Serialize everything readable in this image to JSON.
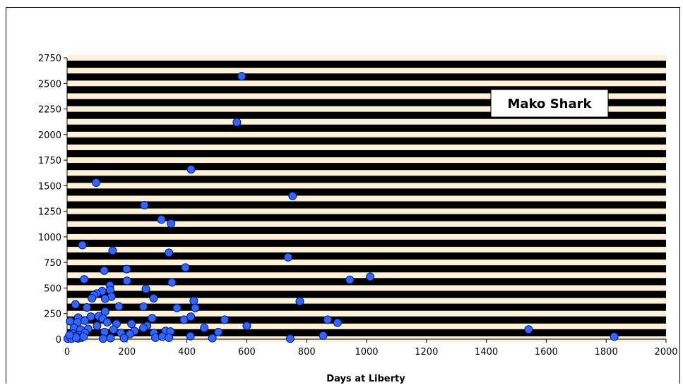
{
  "chart_data": {
    "type": "scatter",
    "title": "",
    "xlabel": "Days at Liberty",
    "ylabel": "",
    "xlim": [
      0,
      2000
    ],
    "ylim": [
      0,
      2750
    ],
    "x_ticks": [
      0,
      200,
      400,
      600,
      800,
      1000,
      1200,
      1400,
      1600,
      1800,
      2000
    ],
    "y_ticks": [
      0,
      250,
      500,
      750,
      1000,
      1250,
      1500,
      1750,
      2000,
      2250,
      2500,
      2750
    ],
    "grid": "banded",
    "legend": {
      "text": "Mako Shark",
      "placement": "top-right"
    },
    "colors": {
      "band_dark": "#000000",
      "band_light": "#fdf2d9",
      "marker_fill": "#3366ff",
      "marker_stroke": "#001a80"
    },
    "series": [
      {
        "name": "Mako Shark",
        "points": [
          [
            583,
            2570
          ],
          [
            567,
            2120
          ],
          [
            414,
            1660
          ],
          [
            97,
            1530
          ],
          [
            753,
            1400
          ],
          [
            258,
            1310
          ],
          [
            315,
            1170
          ],
          [
            347,
            1130
          ],
          [
            51,
            920
          ],
          [
            152,
            865
          ],
          [
            340,
            845
          ],
          [
            738,
            800
          ],
          [
            395,
            700
          ],
          [
            199,
            685
          ],
          [
            124,
            670
          ],
          [
            57,
            585
          ],
          [
            200,
            570
          ],
          [
            1012,
            610
          ],
          [
            944,
            580
          ],
          [
            350,
            555
          ],
          [
            143,
            525
          ],
          [
            263,
            490
          ],
          [
            144,
            480
          ],
          [
            117,
            470
          ],
          [
            98,
            445
          ],
          [
            89,
            430
          ],
          [
            148,
            415
          ],
          [
            83,
            400
          ],
          [
            127,
            395
          ],
          [
            289,
            400
          ],
          [
            777,
            370
          ],
          [
            423,
            375
          ],
          [
            28,
            340
          ],
          [
            66,
            310
          ],
          [
            173,
            320
          ],
          [
            255,
            318
          ],
          [
            367,
            305
          ],
          [
            428,
            305
          ],
          [
            127,
            270
          ],
          [
            37,
            210
          ],
          [
            106,
            225
          ],
          [
            79,
            220
          ],
          [
            284,
            205
          ],
          [
            390,
            190
          ],
          [
            413,
            220
          ],
          [
            119,
            200
          ],
          [
            526,
            190
          ],
          [
            870,
            190
          ],
          [
            903,
            160
          ],
          [
            10,
            175
          ],
          [
            35,
            165
          ],
          [
            59,
            180
          ],
          [
            134,
            165
          ],
          [
            165,
            150
          ],
          [
            215,
            150
          ],
          [
            267,
            130
          ],
          [
            255,
            110
          ],
          [
            100,
            130
          ],
          [
            70,
            100
          ],
          [
            23,
            110
          ],
          [
            45,
            95
          ],
          [
            125,
            70
          ],
          [
            155,
            95
          ],
          [
            225,
            80
          ],
          [
            329,
            80
          ],
          [
            345,
            75
          ],
          [
            458,
            110
          ],
          [
            600,
            130
          ],
          [
            505,
            70
          ],
          [
            180,
            60
          ],
          [
            210,
            50
          ],
          [
            290,
            60
          ],
          [
            20,
            55
          ],
          [
            40,
            40
          ],
          [
            60,
            60
          ],
          [
            12,
            20
          ],
          [
            28,
            30
          ],
          [
            5,
            10
          ],
          [
            2,
            5
          ],
          [
            15,
            5
          ],
          [
            36,
            8
          ],
          [
            48,
            15
          ],
          [
            55,
            25
          ],
          [
            30,
            15
          ],
          [
            8,
            40
          ],
          [
            120,
            5
          ],
          [
            145,
            10
          ],
          [
            190,
            10
          ],
          [
            295,
            15
          ],
          [
            318,
            25
          ],
          [
            340,
            15
          ],
          [
            412,
            30
          ],
          [
            485,
            10
          ],
          [
            745,
            5
          ],
          [
            855,
            35
          ],
          [
            1541,
            95
          ],
          [
            1827,
            25
          ]
        ]
      }
    ]
  }
}
